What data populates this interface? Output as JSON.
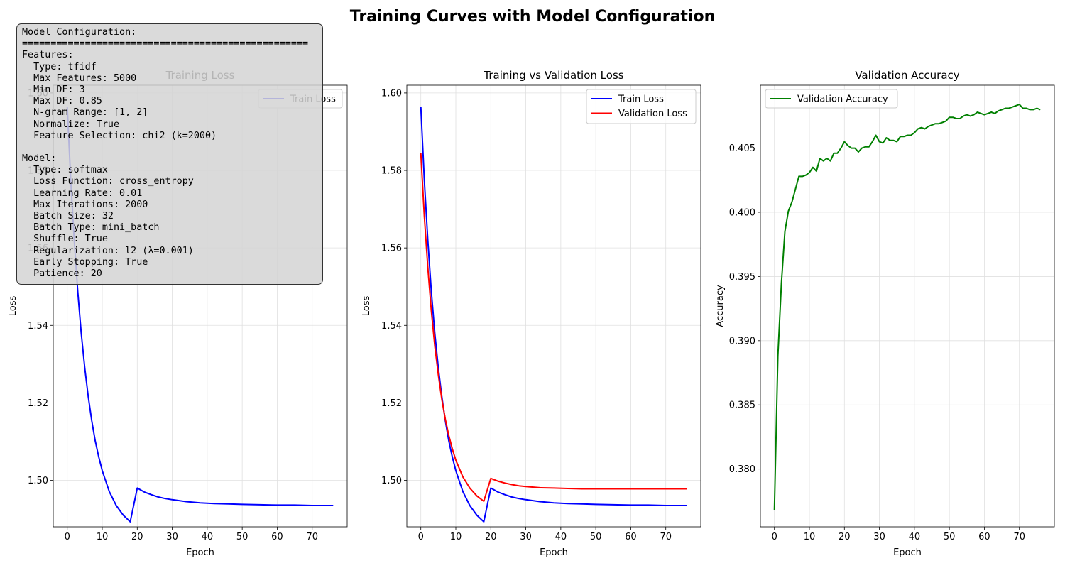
{
  "figure": {
    "title": "Training Curves with Model Configuration"
  },
  "colors": {
    "train": "#0000ff",
    "validation": "#ff0000",
    "accuracy": "#008000",
    "grid": "#e0e0e0"
  },
  "config_box": {
    "lines": [
      "Model Configuration:",
      "==================================================",
      "Features:",
      "  Type: tfidf",
      "  Max Features: 5000",
      "  Min DF: 3",
      "  Max DF: 0.85",
      "  N-gram Range: [1, 2]",
      "  Normalize: True",
      "  Feature Selection: chi2 (k=2000)",
      "",
      "Model:",
      "  Type: softmax",
      "  Loss Function: cross_entropy",
      "  Learning Rate: 0.01",
      "  Max Iterations: 2000",
      "  Batch Size: 32",
      "  Batch Type: mini_batch",
      "  Shuffle: True",
      "  Regularization: l2 (λ=0.001)",
      "  Early Stopping: True",
      "  Patience: 20"
    ]
  },
  "chart_data": [
    {
      "type": "line",
      "title": "Training Loss",
      "xlabel": "Epoch",
      "ylabel": "Loss",
      "xlim": [
        -4,
        80
      ],
      "ylim": [
        1.488,
        1.602
      ],
      "xticks": [
        0,
        10,
        20,
        30,
        40,
        50,
        60,
        70
      ],
      "yticks": [
        1.5,
        1.52,
        1.54,
        1.56,
        1.58,
        1.6
      ],
      "ytick_labels": [
        "1.50",
        "1.52",
        "1.54",
        "1.56",
        "1.58",
        "1.60"
      ],
      "grid": true,
      "legend": "upper right",
      "series": [
        {
          "name": "Train Loss",
          "color": "#0000ff",
          "x": [
            0,
            1,
            2,
            3,
            4,
            5,
            6,
            7,
            8,
            9,
            10,
            12,
            14,
            16,
            18,
            20,
            22,
            24,
            26,
            28,
            30,
            34,
            38,
            42,
            46,
            50,
            55,
            60,
            65,
            70,
            76
          ],
          "y": [
            1.5965,
            1.5776,
            1.5619,
            1.5488,
            1.538,
            1.529,
            1.5216,
            1.5154,
            1.5102,
            1.506,
            1.5025,
            1.4971,
            1.4935,
            1.491,
            1.4893,
            1.498,
            1.497,
            1.4963,
            1.4957,
            1.4953,
            1.495,
            1.4945,
            1.4942,
            1.494,
            1.4939,
            1.4938,
            1.4937,
            1.4936,
            1.4936,
            1.4935,
            1.4935
          ]
        }
      ]
    },
    {
      "type": "line",
      "title": "Training vs Validation Loss",
      "xlabel": "Epoch",
      "ylabel": "Loss",
      "xlim": [
        -4,
        80
      ],
      "ylim": [
        1.488,
        1.602
      ],
      "xticks": [
        0,
        10,
        20,
        30,
        40,
        50,
        60,
        70
      ],
      "yticks": [
        1.5,
        1.52,
        1.54,
        1.56,
        1.58,
        1.6
      ],
      "ytick_labels": [
        "1.50",
        "1.52",
        "1.54",
        "1.56",
        "1.58",
        "1.60"
      ],
      "grid": true,
      "legend": "upper right",
      "series": [
        {
          "name": "Train Loss",
          "color": "#0000ff",
          "x": [
            0,
            1,
            2,
            3,
            4,
            5,
            6,
            7,
            8,
            9,
            10,
            12,
            14,
            16,
            18,
            20,
            22,
            24,
            26,
            28,
            30,
            34,
            38,
            42,
            46,
            50,
            55,
            60,
            65,
            70,
            76
          ],
          "y": [
            1.5965,
            1.5776,
            1.5619,
            1.5488,
            1.538,
            1.529,
            1.5216,
            1.5154,
            1.5102,
            1.506,
            1.5025,
            1.4971,
            1.4935,
            1.491,
            1.4893,
            1.498,
            1.497,
            1.4963,
            1.4957,
            1.4953,
            1.495,
            1.4945,
            1.4942,
            1.494,
            1.4939,
            1.4938,
            1.4937,
            1.4936,
            1.4936,
            1.4935,
            1.4935
          ]
        },
        {
          "name": "Validation Loss",
          "color": "#ff0000",
          "x": [
            0,
            1,
            2,
            3,
            4,
            5,
            6,
            7,
            8,
            9,
            10,
            12,
            14,
            16,
            18,
            20,
            22,
            24,
            26,
            28,
            30,
            34,
            38,
            42,
            46,
            50,
            55,
            60,
            65,
            70,
            76
          ],
          "y": [
            1.5845,
            1.5683,
            1.5549,
            1.5438,
            1.5347,
            1.5272,
            1.5209,
            1.5158,
            1.5116,
            1.5081,
            1.5052,
            1.5009,
            1.498,
            1.496,
            1.4946,
            1.5005,
            1.4998,
            1.4993,
            1.4989,
            1.4986,
            1.4984,
            1.4981,
            1.498,
            1.4979,
            1.4978,
            1.4978,
            1.4978,
            1.4978,
            1.4978,
            1.4978,
            1.4978
          ]
        }
      ]
    },
    {
      "type": "line",
      "title": "Validation Accuracy",
      "xlabel": "Epoch",
      "ylabel": "Accuracy",
      "xlim": [
        -4,
        80
      ],
      "ylim": [
        0.3755,
        0.4099
      ],
      "xticks": [
        0,
        10,
        20,
        30,
        40,
        50,
        60,
        70
      ],
      "yticks": [
        0.38,
        0.385,
        0.39,
        0.395,
        0.4,
        0.405
      ],
      "ytick_labels": [
        "0.380",
        "0.385",
        "0.390",
        "0.395",
        "0.400",
        "0.405"
      ],
      "grid": true,
      "legend": "upper left",
      "series": [
        {
          "name": "Validation Accuracy",
          "color": "#008000",
          "x": [
            0,
            1,
            2,
            3,
            4,
            5,
            6,
            7,
            8,
            9,
            10,
            11,
            12,
            13,
            14,
            15,
            16,
            17,
            18,
            19,
            20,
            21,
            22,
            23,
            24,
            25,
            26,
            27,
            28,
            29,
            30,
            31,
            32,
            33,
            34,
            35,
            36,
            37,
            38,
            39,
            40,
            41,
            42,
            43,
            44,
            45,
            46,
            47,
            48,
            49,
            50,
            51,
            52,
            53,
            54,
            55,
            56,
            57,
            58,
            59,
            60,
            61,
            62,
            63,
            64,
            65,
            66,
            67,
            68,
            69,
            70,
            71,
            72,
            73,
            74,
            75,
            76
          ],
          "y": [
            0.3768,
            0.3888,
            0.3945,
            0.3985,
            0.4001,
            0.4008,
            0.4018,
            0.4028,
            0.4028,
            0.4029,
            0.4031,
            0.4035,
            0.4032,
            0.4042,
            0.404,
            0.4042,
            0.404,
            0.4046,
            0.4046,
            0.405,
            0.4055,
            0.4052,
            0.405,
            0.405,
            0.4047,
            0.405,
            0.4051,
            0.4051,
            0.4055,
            0.406,
            0.4055,
            0.4054,
            0.4058,
            0.4056,
            0.4056,
            0.4055,
            0.4059,
            0.4059,
            0.406,
            0.406,
            0.4062,
            0.4065,
            0.4066,
            0.4065,
            0.4067,
            0.4068,
            0.4069,
            0.4069,
            0.407,
            0.4071,
            0.4074,
            0.4074,
            0.4073,
            0.4073,
            0.4075,
            0.4076,
            0.4075,
            0.4076,
            0.4078,
            0.4077,
            0.4076,
            0.4077,
            0.4078,
            0.4077,
            0.4079,
            0.408,
            0.4081,
            0.4081,
            0.4082,
            0.4083,
            0.4084,
            0.4081,
            0.4081,
            0.408,
            0.408,
            0.4081,
            0.408
          ]
        }
      ]
    }
  ]
}
